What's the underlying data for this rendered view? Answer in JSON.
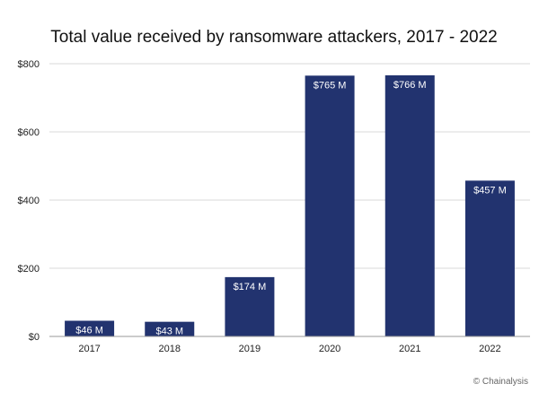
{
  "chart_data": {
    "type": "bar",
    "title": "Total value received by ransomware attackers, 2017 - 2022",
    "categories": [
      "2017",
      "2018",
      "2019",
      "2020",
      "2021",
      "2022"
    ],
    "values": [
      46,
      43,
      174,
      765,
      766,
      457
    ],
    "data_labels": [
      "$46 M",
      "$43 M",
      "$174 M",
      "$765 M",
      "$766 M",
      "$457 M"
    ],
    "y_ticks": [
      "$0",
      "$200",
      "$400",
      "$600",
      "$800"
    ],
    "y_tick_values": [
      0,
      200,
      400,
      600,
      800
    ],
    "ylim": [
      0,
      800
    ],
    "grid": true,
    "bar_color": "#22336f",
    "xlabel": "",
    "ylabel": ""
  },
  "credit": "© Chainalysis"
}
